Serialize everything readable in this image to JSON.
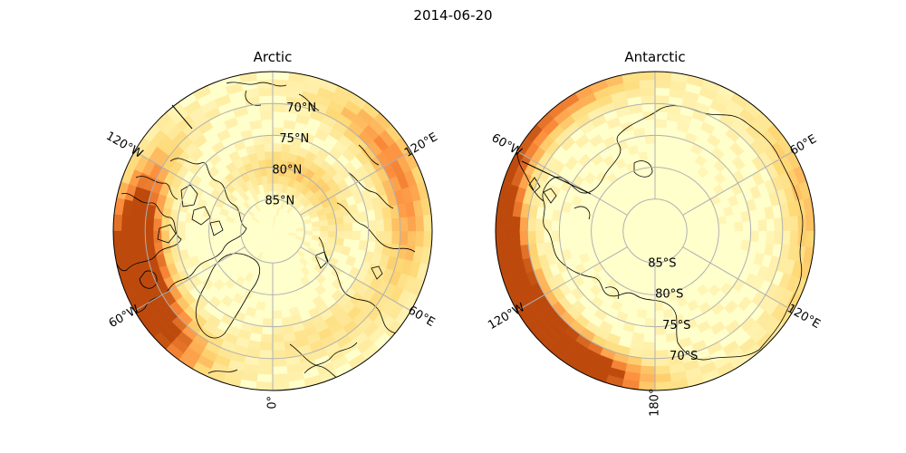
{
  "figure": {
    "title": "2014-06-20"
  },
  "colors": {
    "grid": "#b0b0b0",
    "coast": "#000000",
    "field_low": "#ffffcc",
    "field_mid": "#fed976",
    "field_high": "#fd8d3c",
    "field_max": "#bd4a0c"
  },
  "panels": [
    {
      "id": "arctic",
      "title": "Arctic",
      "hemisphere": "north",
      "lat_labels": [
        {
          "lat": 70,
          "text": "70°N"
        },
        {
          "lat": 75,
          "text": "75°N"
        },
        {
          "lat": 80,
          "text": "80°N"
        },
        {
          "lat": 85,
          "text": "85°N"
        }
      ],
      "lon_labels": [
        {
          "lon": -120,
          "text": "120°W"
        },
        {
          "lon": 120,
          "text": "120°E"
        },
        {
          "lon": -60,
          "text": "60°W"
        },
        {
          "lon": 60,
          "text": "60°E"
        },
        {
          "lon": 0,
          "text": "0°"
        }
      ],
      "hotspots": [
        {
          "lon": -62,
          "colat": 24,
          "level": 0.95
        },
        {
          "lon": -72,
          "colat": 22,
          "level": 0.8
        },
        {
          "lon": -80,
          "colat": 20,
          "level": 0.55
        },
        {
          "lon": -100,
          "colat": 21,
          "level": 0.35
        },
        {
          "lon": 125,
          "colat": 22,
          "level": 0.5
        },
        {
          "lon": 150,
          "colat": 10,
          "level": 0.35
        },
        {
          "lon": 90,
          "colat": 21,
          "level": 0.3
        },
        {
          "lon": 30,
          "colat": 18,
          "level": 0.18
        }
      ]
    },
    {
      "id": "antarctic",
      "title": "Antarctic",
      "hemisphere": "south",
      "lat_labels": [
        {
          "lat": -85,
          "text": "85°S"
        },
        {
          "lat": -80,
          "text": "80°S"
        },
        {
          "lat": -75,
          "text": "75°S"
        },
        {
          "lat": -70,
          "text": "70°S"
        }
      ],
      "lon_labels": [
        {
          "lon": -60,
          "text": "60°W"
        },
        {
          "lon": 60,
          "text": "60°E"
        },
        {
          "lon": -120,
          "text": "120°W"
        },
        {
          "lon": 120,
          "text": "120°E"
        },
        {
          "lon": 180,
          "text": "180°"
        }
      ],
      "hotspots": [
        {
          "lon": -120,
          "colat": 24,
          "level": 1.0
        },
        {
          "lon": -105,
          "colat": 24,
          "level": 0.9
        },
        {
          "lon": -135,
          "colat": 23,
          "level": 0.85
        },
        {
          "lon": -150,
          "colat": 24,
          "level": 0.6
        },
        {
          "lon": -85,
          "colat": 25,
          "level": 0.55
        },
        {
          "lon": -55,
          "colat": 25,
          "level": 0.45
        },
        {
          "lon": -30,
          "colat": 25,
          "level": 0.35
        },
        {
          "lon": 70,
          "colat": 24,
          "level": 0.3
        },
        {
          "lon": 110,
          "colat": 25,
          "level": 0.2
        }
      ]
    }
  ]
}
